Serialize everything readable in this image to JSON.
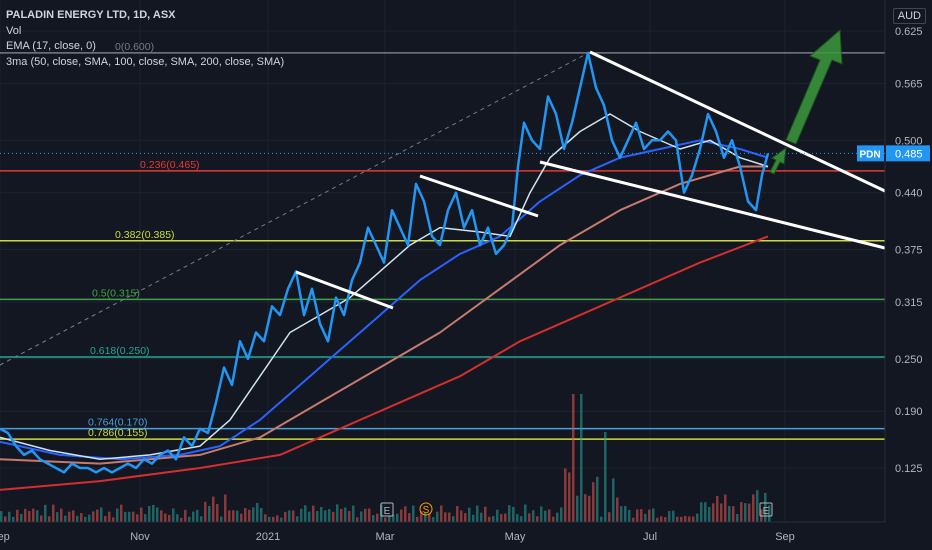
{
  "legend": {
    "ticker": "PALADIN ENERGY LTD, 1D, ASX",
    "vol": "Vol",
    "ema": "EMA (17, close, 0)",
    "ma3": "3ma (50, close, SMA, 100, close, SMA, 200, close, SMA)"
  },
  "currency": "AUD",
  "colors": {
    "background": "#131722",
    "price": "#2196f3",
    "ema": "#d0e4f0",
    "sma50": "#2962ff",
    "sma100": "#c77a6e",
    "sma200": "#d32f2f",
    "trendline": "#ffffff",
    "arrow": "#3c9a3c",
    "volume_up": "#26a69a",
    "volume_down": "#ef5350"
  },
  "chart_data": {
    "type": "line",
    "title": "PALADIN ENERGY LTD, 1D, ASX",
    "y_axis": {
      "ticks": [
        "0.625",
        "0.565",
        "0.500",
        "0.440",
        "0.375",
        "0.315",
        "0.250",
        "0.190",
        "0.125"
      ],
      "ylim": [
        0.06,
        0.66
      ]
    },
    "x_axis": {
      "ticks": [
        "Sep",
        "Nov",
        "2021",
        "Mar",
        "May",
        "Jul",
        "Sep"
      ]
    },
    "last_price": {
      "symbol": "PDN",
      "value": "0.485"
    },
    "fib_levels": [
      {
        "label": "0(0.600)",
        "value": 0.6,
        "color": "#787b86"
      },
      {
        "label": "0.236(0.465)",
        "value": 0.465,
        "color": "#e53935"
      },
      {
        "label": "0.382(0.385)",
        "value": 0.385,
        "color": "#cddc39"
      },
      {
        "label": "0.5(0.315)",
        "value": 0.318,
        "color": "#43a047"
      },
      {
        "label": "0.618(0.250)",
        "value": 0.252,
        "color": "#26a69a"
      },
      {
        "label": "0.764(0.170)",
        "value": 0.17,
        "color": "#4a9fd8"
      },
      {
        "label": "0.786(0.155)",
        "value": 0.158,
        "color": "#cddc39"
      }
    ],
    "series": [
      {
        "key": "price",
        "values": [
          [
            0,
            0.17
          ],
          [
            8,
            0.165
          ],
          [
            16,
            0.15
          ],
          [
            24,
            0.14
          ],
          [
            32,
            0.145
          ],
          [
            40,
            0.135
          ],
          [
            48,
            0.13
          ],
          [
            56,
            0.125
          ],
          [
            64,
            0.12
          ],
          [
            72,
            0.13
          ],
          [
            80,
            0.125
          ],
          [
            88,
            0.125
          ],
          [
            96,
            0.12
          ],
          [
            104,
            0.125
          ],
          [
            112,
            0.12
          ],
          [
            120,
            0.125
          ],
          [
            128,
            0.13
          ],
          [
            136,
            0.125
          ],
          [
            144,
            0.135
          ],
          [
            152,
            0.13
          ],
          [
            160,
            0.14
          ],
          [
            168,
            0.145
          ],
          [
            176,
            0.135
          ],
          [
            184,
            0.16
          ],
          [
            192,
            0.15
          ],
          [
            200,
            0.17
          ],
          [
            208,
            0.165
          ],
          [
            216,
            0.2
          ],
          [
            224,
            0.24
          ],
          [
            232,
            0.22
          ],
          [
            240,
            0.27
          ],
          [
            248,
            0.25
          ],
          [
            256,
            0.28
          ],
          [
            264,
            0.27
          ],
          [
            272,
            0.31
          ],
          [
            280,
            0.3
          ],
          [
            288,
            0.33
          ],
          [
            296,
            0.35
          ],
          [
            304,
            0.3
          ],
          [
            312,
            0.33
          ],
          [
            320,
            0.29
          ],
          [
            328,
            0.27
          ],
          [
            336,
            0.32
          ],
          [
            344,
            0.3
          ],
          [
            352,
            0.34
          ],
          [
            360,
            0.36
          ],
          [
            368,
            0.4
          ],
          [
            376,
            0.38
          ],
          [
            384,
            0.36
          ],
          [
            392,
            0.42
          ],
          [
            400,
            0.4
          ],
          [
            408,
            0.38
          ],
          [
            416,
            0.45
          ],
          [
            424,
            0.43
          ],
          [
            432,
            0.39
          ],
          [
            440,
            0.38
          ],
          [
            448,
            0.42
          ],
          [
            456,
            0.44
          ],
          [
            464,
            0.4
          ],
          [
            472,
            0.42
          ],
          [
            480,
            0.38
          ],
          [
            488,
            0.4
          ],
          [
            496,
            0.37
          ],
          [
            504,
            0.38
          ],
          [
            512,
            0.4
          ],
          [
            518,
            0.47
          ],
          [
            524,
            0.52
          ],
          [
            532,
            0.5
          ],
          [
            540,
            0.49
          ],
          [
            548,
            0.55
          ],
          [
            556,
            0.53
          ],
          [
            564,
            0.49
          ],
          [
            572,
            0.52
          ],
          [
            580,
            0.56
          ],
          [
            588,
            0.6
          ],
          [
            596,
            0.56
          ],
          [
            604,
            0.54
          ],
          [
            612,
            0.5
          ],
          [
            620,
            0.48
          ],
          [
            628,
            0.5
          ],
          [
            636,
            0.52
          ],
          [
            644,
            0.49
          ],
          [
            652,
            0.5
          ],
          [
            660,
            0.5
          ],
          [
            668,
            0.51
          ],
          [
            676,
            0.5
          ],
          [
            684,
            0.44
          ],
          [
            692,
            0.46
          ],
          [
            700,
            0.49
          ],
          [
            708,
            0.53
          ],
          [
            716,
            0.51
          ],
          [
            724,
            0.48
          ],
          [
            732,
            0.5
          ],
          [
            740,
            0.47
          ],
          [
            748,
            0.43
          ],
          [
            756,
            0.42
          ],
          [
            762,
            0.46
          ],
          [
            768,
            0.485
          ]
        ]
      },
      {
        "key": "ema",
        "values": [
          [
            0,
            0.16
          ],
          [
            50,
            0.145
          ],
          [
            100,
            0.135
          ],
          [
            150,
            0.14
          ],
          [
            200,
            0.15
          ],
          [
            230,
            0.18
          ],
          [
            260,
            0.23
          ],
          [
            290,
            0.28
          ],
          [
            320,
            0.3
          ],
          [
            350,
            0.32
          ],
          [
            380,
            0.35
          ],
          [
            410,
            0.38
          ],
          [
            440,
            0.4
          ],
          [
            480,
            0.395
          ],
          [
            510,
            0.39
          ],
          [
            530,
            0.44
          ],
          [
            550,
            0.48
          ],
          [
            580,
            0.51
          ],
          [
            610,
            0.53
          ],
          [
            640,
            0.51
          ],
          [
            680,
            0.49
          ],
          [
            710,
            0.5
          ],
          [
            740,
            0.48
          ],
          [
            768,
            0.47
          ]
        ]
      },
      {
        "key": "sma50",
        "values": [
          [
            0,
            0.155
          ],
          [
            60,
            0.14
          ],
          [
            120,
            0.135
          ],
          [
            180,
            0.14
          ],
          [
            220,
            0.15
          ],
          [
            260,
            0.18
          ],
          [
            300,
            0.22
          ],
          [
            340,
            0.26
          ],
          [
            380,
            0.3
          ],
          [
            420,
            0.34
          ],
          [
            460,
            0.37
          ],
          [
            500,
            0.39
          ],
          [
            540,
            0.43
          ],
          [
            580,
            0.46
          ],
          [
            620,
            0.48
          ],
          [
            660,
            0.49
          ],
          [
            700,
            0.5
          ],
          [
            740,
            0.49
          ],
          [
            768,
            0.48
          ]
        ]
      },
      {
        "key": "sma100",
        "values": [
          [
            0,
            0.135
          ],
          [
            100,
            0.13
          ],
          [
            200,
            0.14
          ],
          [
            260,
            0.16
          ],
          [
            320,
            0.2
          ],
          [
            380,
            0.24
          ],
          [
            440,
            0.28
          ],
          [
            500,
            0.33
          ],
          [
            560,
            0.38
          ],
          [
            620,
            0.42
          ],
          [
            680,
            0.45
          ],
          [
            740,
            0.47
          ],
          [
            768,
            0.47
          ]
        ]
      },
      {
        "key": "sma200",
        "values": [
          [
            0,
            0.1
          ],
          [
            100,
            0.11
          ],
          [
            200,
            0.125
          ],
          [
            280,
            0.14
          ],
          [
            340,
            0.17
          ],
          [
            400,
            0.2
          ],
          [
            460,
            0.23
          ],
          [
            520,
            0.27
          ],
          [
            580,
            0.3
          ],
          [
            640,
            0.33
          ],
          [
            700,
            0.36
          ],
          [
            768,
            0.39
          ]
        ]
      }
    ]
  }
}
